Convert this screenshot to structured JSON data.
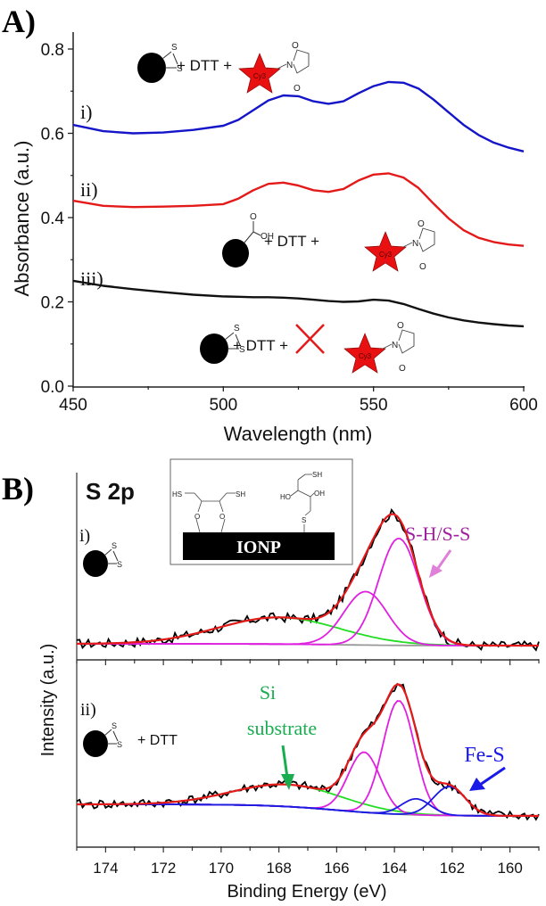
{
  "chart_data": [
    {
      "panel_label": "A)",
      "type": "line",
      "title": "",
      "xlabel": "Wavelength (nm)",
      "ylabel": "Absorbance (a.u.)",
      "xlim": [
        450,
        600
      ],
      "ylim": [
        0.0,
        0.8
      ],
      "xticks": [
        "450",
        "500",
        "550",
        "600"
      ],
      "yticks": [
        "0.0",
        "0.2",
        "0.4",
        "0.6",
        "0.8"
      ],
      "grid": false,
      "x": [
        450,
        460,
        470,
        480,
        490,
        500,
        505,
        510,
        515,
        520,
        525,
        530,
        535,
        540,
        545,
        550,
        555,
        560,
        565,
        570,
        575,
        580,
        585,
        590,
        595,
        600
      ],
      "series": [
        {
          "name": "i)",
          "color": "#1414c8",
          "annotation": "+ DTT +",
          "values": [
            0.62,
            0.605,
            0.6,
            0.602,
            0.608,
            0.618,
            0.632,
            0.655,
            0.678,
            0.69,
            0.688,
            0.676,
            0.67,
            0.676,
            0.695,
            0.712,
            0.722,
            0.72,
            0.706,
            0.68,
            0.65,
            0.62,
            0.596,
            0.578,
            0.566,
            0.557
          ]
        },
        {
          "name": "ii)",
          "color": "#e41a1a",
          "annotation": "+ DTT +",
          "values": [
            0.44,
            0.428,
            0.425,
            0.426,
            0.428,
            0.432,
            0.445,
            0.465,
            0.48,
            0.483,
            0.476,
            0.465,
            0.461,
            0.468,
            0.488,
            0.502,
            0.505,
            0.495,
            0.47,
            0.433,
            0.398,
            0.37,
            0.352,
            0.342,
            0.336,
            0.333
          ]
        },
        {
          "name": "iii)",
          "color": "#111111",
          "annotation": "+ DTT +",
          "crossed_out": "DTT",
          "values": [
            0.25,
            0.238,
            0.23,
            0.223,
            0.217,
            0.213,
            0.212,
            0.211,
            0.211,
            0.21,
            0.208,
            0.205,
            0.202,
            0.2,
            0.201,
            0.205,
            0.203,
            0.195,
            0.183,
            0.172,
            0.163,
            0.156,
            0.151,
            0.147,
            0.144,
            0.142
          ]
        }
      ],
      "molecule_labels": {
        "dye": "Cy3",
        "atoms_S": "S",
        "atom_N": "N",
        "atom_O": "O",
        "carboxyl_OH": "OH"
      }
    },
    {
      "panel_label": "B)",
      "type": "line",
      "title": "S 2p",
      "xlabel": "Binding Energy (eV)",
      "ylabel": "Intensity (a.u.)",
      "xlim": [
        175,
        159
      ],
      "x_reversed": true,
      "xticks": [
        "174",
        "172",
        "170",
        "168",
        "166",
        "164",
        "162",
        "160"
      ],
      "grid": false,
      "subplots": [
        {
          "name": "i)",
          "annotation": "",
          "series": [
            {
              "name": "raw data",
              "color": "#000000"
            },
            {
              "name": "envelope fit",
              "color": "#e41a1a"
            },
            {
              "name": "S-H/S-S component 1",
              "color": "#e020e0",
              "center_eV": 163.85,
              "rel_height": 0.8
            },
            {
              "name": "S-H/S-S component 2",
              "color": "#e020e0",
              "center_eV": 165.0,
              "rel_height": 0.4
            },
            {
              "name": "Si substrate",
              "color": "#22dd22",
              "center_eV": 168.0,
              "rel_height": 0.2
            },
            {
              "name": "background",
              "color": "#999999"
            }
          ],
          "labels": [
            {
              "text": "S-H/S-S",
              "color": "#a020a0",
              "target_eV": 162.7
            }
          ]
        },
        {
          "name": "ii)",
          "annotation": "+ DTT",
          "series": [
            {
              "name": "raw data",
              "color": "#000000"
            },
            {
              "name": "envelope fit",
              "color": "#e41a1a"
            },
            {
              "name": "S-H/S-S component 1",
              "color": "#e020e0",
              "center_eV": 163.85,
              "rel_height": 0.85
            },
            {
              "name": "S-H/S-S component 2",
              "color": "#e020e0",
              "center_eV": 165.05,
              "rel_height": 0.45
            },
            {
              "name": "Fe-S component 1",
              "color": "#1a1ae0",
              "center_eV": 162.1,
              "rel_height": 0.3
            },
            {
              "name": "Fe-S component 2",
              "color": "#1a1ae0",
              "center_eV": 163.25,
              "rel_height": 0.12
            },
            {
              "name": "Si substrate",
              "color": "#22dd22",
              "center_eV": 167.7,
              "rel_height": 0.22
            },
            {
              "name": "background",
              "color": "#999999"
            }
          ],
          "labels": [
            {
              "text": "Si",
              "color": "#1aad50"
            },
            {
              "text": "substrate",
              "color": "#1aad50"
            },
            {
              "text": "Fe-S",
              "color": "#1a1ae8",
              "target_eV": 161.6
            }
          ]
        }
      ],
      "inset": {
        "particle_label": "IONP",
        "groups_left": [
          "HS",
          "SH",
          "O",
          "O"
        ],
        "groups_right": [
          "SH",
          "HO",
          "OH",
          "S"
        ]
      }
    }
  ]
}
